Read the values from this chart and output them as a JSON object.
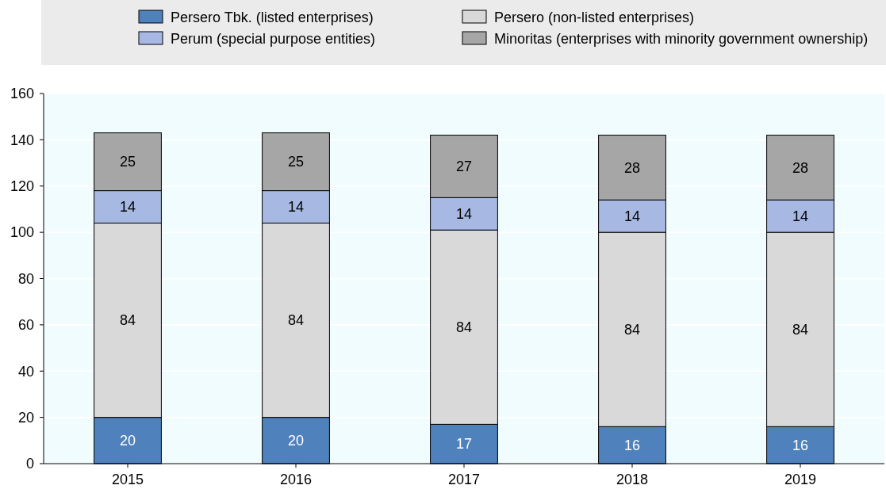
{
  "chart_data": {
    "type": "bar",
    "stacked": true,
    "categories": [
      "2015",
      "2016",
      "2017",
      "2018",
      "2019"
    ],
    "series": [
      {
        "name": "Persero Tbk. (listed enterprises)",
        "color": "#4f81bd",
        "values": [
          20,
          20,
          17,
          16,
          16
        ]
      },
      {
        "name": "Persero (non-listed enterprises)",
        "color": "#d9d9d9",
        "values": [
          84,
          84,
          84,
          84,
          84
        ]
      },
      {
        "name": "Perum (special purpose entities)",
        "color": "#a7b9e3",
        "values": [
          14,
          14,
          14,
          14,
          14
        ]
      },
      {
        "name": "Minoritas (enterprises with minority government ownership)",
        "color": "#a6a6a6",
        "values": [
          25,
          25,
          27,
          28,
          28
        ]
      }
    ],
    "ylim": [
      0,
      160
    ],
    "yticks": [
      0,
      20,
      40,
      60,
      80,
      100,
      120,
      140,
      160
    ],
    "grid": "y",
    "legend": "top",
    "data_labels": true
  }
}
